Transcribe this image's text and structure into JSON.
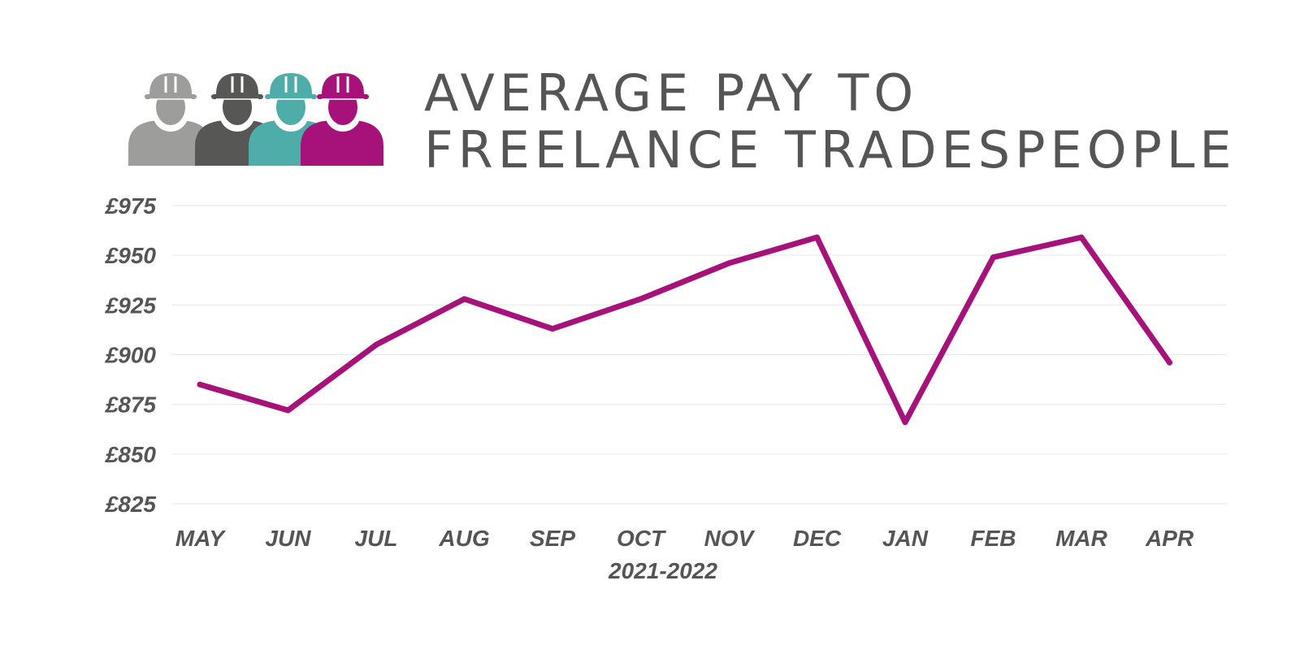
{
  "header": {
    "title_line1": "AVERAGE PAY TO",
    "title_line2": "FREELANCE TRADESPEOPLE",
    "icon": "construction-workers-icon",
    "worker_colors": [
      "#9d9d9c",
      "#575756",
      "#4fada9",
      "#a6127a"
    ]
  },
  "chart_data": {
    "type": "line",
    "title": "AVERAGE PAY TO FREELANCE TRADESPEOPLE",
    "categories": [
      "MAY",
      "JUN",
      "JUL",
      "AUG",
      "SEP",
      "OCT",
      "NOV",
      "DEC",
      "JAN",
      "FEB",
      "MAR",
      "APR"
    ],
    "series": [
      {
        "color": "#a6127a",
        "values": [
          885,
          872,
          905,
          928,
          913,
          928,
          946,
          959,
          866,
          949,
          959,
          896
        ]
      }
    ],
    "xlabel": "2021-2022",
    "ylabel": "",
    "yticks": [
      "£825",
      "£850",
      "£875",
      "£900",
      "£925",
      "£950",
      "£975"
    ],
    "ylim": [
      825,
      975
    ],
    "grid": true,
    "legend": "none"
  }
}
